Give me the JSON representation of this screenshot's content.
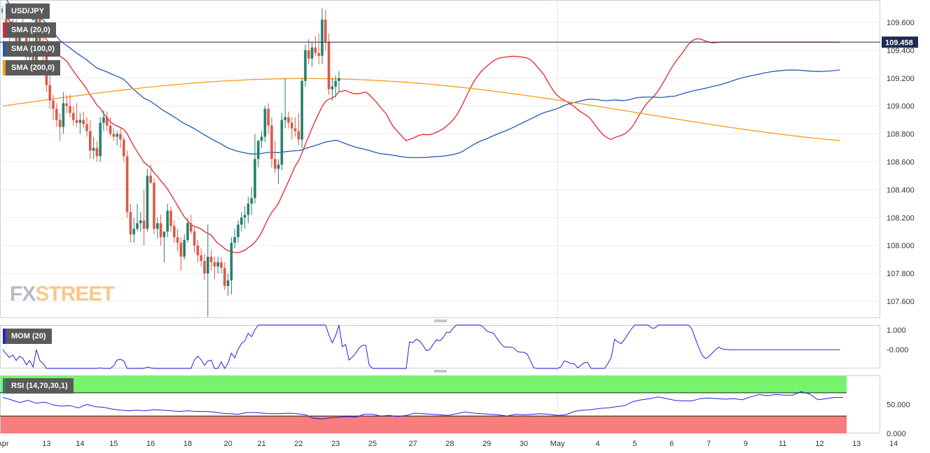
{
  "legend": {
    "symbol": "USD/JPY",
    "sma20": "SMA (20,0)",
    "sma100": "SMA (100,0)",
    "sma200": "SMA (200,0)",
    "mom": "MOM (20)",
    "rsi": "RSI (14,70,30,1)"
  },
  "logo": {
    "part1": "FX",
    "part2": "STREET"
  },
  "colors": {
    "bull": "#26806c",
    "bear": "#dd5a4a",
    "sma20": "#e8242b",
    "sma100": "#2458b8",
    "sma200": "#f59c1a",
    "line": "#2222dd",
    "rsi_over": "#79f36e",
    "rsi_under": "#f97d7d"
  },
  "chart_data": [
    {
      "type": "candlestick",
      "title": "USD/JPY",
      "xlabel": "",
      "ylabel": "",
      "ylim": [
        107.48,
        109.76
      ],
      "y_ticks": [
        "109.600",
        "109.400",
        "109.200",
        "109.000",
        "108.800",
        "108.600",
        "108.400",
        "108.200",
        "108.000",
        "107.800",
        "107.600"
      ],
      "x_ticks": [
        "Apr",
        "13",
        "14",
        "15",
        "16",
        "18",
        "20",
        "21",
        "22",
        "23",
        "25",
        "27",
        "28",
        "29",
        "30",
        "May",
        "4",
        "5",
        "6",
        "7",
        "9",
        "11",
        "12",
        "13",
        "14"
      ],
      "x_tick_index": [
        0,
        13,
        23,
        33,
        44,
        55,
        67,
        77,
        88,
        99,
        110,
        122,
        133,
        144,
        155,
        165,
        177,
        188,
        199,
        210,
        221,
        232,
        243,
        254,
        265
      ],
      "current_price": "109.458",
      "current_price_value": 109.458,
      "candles": [
        [
          109.67,
          109.72,
          109.62,
          109.7
        ],
        [
          109.7,
          109.74,
          109.55,
          109.6
        ],
        [
          109.6,
          109.65,
          109.45,
          109.52
        ],
        [
          109.52,
          109.62,
          109.48,
          109.58
        ],
        [
          109.58,
          109.62,
          109.4,
          109.45
        ],
        [
          109.45,
          109.6,
          109.4,
          109.55
        ],
        [
          109.55,
          109.66,
          109.48,
          109.5
        ],
        [
          109.5,
          109.55,
          109.3,
          109.35
        ],
        [
          109.35,
          109.5,
          109.3,
          109.45
        ],
        [
          109.45,
          109.5,
          109.25,
          109.3
        ],
        [
          109.3,
          109.72,
          109.25,
          109.7
        ],
        [
          109.7,
          109.73,
          109.4,
          109.45
        ],
        [
          109.45,
          109.6,
          109.3,
          109.38
        ],
        [
          109.38,
          109.42,
          109.1,
          109.15
        ],
        [
          109.15,
          109.22,
          108.98,
          109.04
        ],
        [
          109.04,
          109.08,
          108.9,
          108.98
        ],
        [
          108.98,
          109.02,
          108.85,
          108.9
        ],
        [
          108.9,
          108.95,
          108.75,
          108.85
        ],
        [
          108.85,
          109.1,
          108.8,
          109.02
        ],
        [
          109.02,
          109.08,
          108.95,
          109.0
        ],
        [
          109.0,
          109.08,
          108.92,
          108.95
        ],
        [
          108.95,
          109.0,
          108.86,
          108.9
        ],
        [
          108.9,
          109.02,
          108.85,
          108.88
        ],
        [
          108.88,
          108.95,
          108.8,
          108.9
        ],
        [
          108.9,
          108.96,
          108.84,
          108.87
        ],
        [
          108.87,
          108.92,
          108.78,
          108.82
        ],
        [
          108.82,
          108.9,
          108.62,
          108.68
        ],
        [
          108.68,
          108.78,
          108.62,
          108.7
        ],
        [
          108.7,
          108.75,
          108.6,
          108.64
        ],
        [
          108.64,
          108.92,
          108.6,
          108.88
        ],
        [
          108.88,
          108.97,
          108.82,
          108.92
        ],
        [
          108.92,
          108.96,
          108.82,
          108.86
        ],
        [
          108.86,
          108.92,
          108.78,
          108.8
        ],
        [
          108.8,
          108.84,
          108.75,
          108.78
        ],
        [
          108.78,
          108.82,
          108.72,
          108.8
        ],
        [
          108.8,
          108.84,
          108.7,
          108.76
        ],
        [
          108.76,
          108.78,
          108.6,
          108.64
        ],
        [
          108.64,
          108.68,
          108.2,
          108.24
        ],
        [
          108.24,
          108.3,
          108.02,
          108.08
        ],
        [
          108.08,
          108.2,
          108.02,
          108.12
        ],
        [
          108.12,
          108.3,
          108.1,
          108.16
        ],
        [
          108.16,
          108.24,
          108.1,
          108.18
        ],
        [
          108.18,
          108.4,
          108.0,
          108.12
        ],
        [
          108.12,
          108.55,
          108.1,
          108.5
        ],
        [
          108.5,
          108.58,
          108.44,
          108.45
        ],
        [
          108.45,
          108.48,
          108.08,
          108.12
        ],
        [
          108.12,
          108.2,
          108.05,
          108.16
        ],
        [
          108.16,
          108.22,
          108.0,
          108.06
        ],
        [
          108.06,
          108.1,
          107.88,
          108.1
        ],
        [
          108.1,
          108.3,
          108.06,
          108.25
        ],
        [
          108.25,
          108.28,
          108.1,
          108.14
        ],
        [
          108.14,
          108.18,
          108.02,
          108.06
        ],
        [
          108.06,
          108.12,
          107.96,
          108.02
        ],
        [
          108.02,
          108.06,
          107.82,
          107.92
        ],
        [
          107.92,
          108.08,
          107.9,
          108.04
        ],
        [
          108.04,
          108.2,
          108.02,
          108.16
        ],
        [
          108.16,
          108.22,
          108.08,
          108.1
        ],
        [
          108.1,
          108.14,
          107.95,
          108.0
        ],
        [
          108.0,
          108.04,
          107.88,
          107.93
        ],
        [
          107.93,
          107.98,
          107.85,
          107.89
        ],
        [
          107.89,
          107.94,
          107.75,
          107.8
        ],
        [
          107.8,
          108.15,
          107.49,
          107.92
        ],
        [
          107.92,
          107.97,
          107.82,
          107.88
        ],
        [
          107.88,
          107.92,
          107.76,
          107.85
        ],
        [
          107.85,
          107.92,
          107.8,
          107.88
        ],
        [
          107.88,
          107.92,
          107.8,
          107.84
        ],
        [
          107.84,
          107.88,
          107.68,
          107.71
        ],
        [
          107.71,
          107.8,
          107.64,
          107.75
        ],
        [
          107.75,
          108.06,
          107.65,
          108.02
        ],
        [
          108.02,
          108.12,
          107.98,
          108.06
        ],
        [
          108.06,
          108.18,
          108.02,
          108.15
        ],
        [
          108.15,
          108.24,
          108.1,
          108.2
        ],
        [
          108.2,
          108.28,
          108.12,
          108.22
        ],
        [
          108.22,
          108.35,
          108.16,
          108.3
        ],
        [
          108.3,
          108.42,
          108.22,
          108.34
        ],
        [
          108.34,
          108.8,
          108.3,
          108.62
        ],
        [
          108.62,
          108.76,
          108.56,
          108.75
        ],
        [
          108.75,
          108.82,
          108.7,
          108.78
        ],
        [
          108.78,
          109.0,
          108.74,
          108.98
        ],
        [
          108.98,
          109.02,
          108.8,
          108.86
        ],
        [
          108.86,
          108.92,
          108.56,
          108.62
        ],
        [
          108.62,
          108.75,
          108.52,
          108.55
        ],
        [
          108.55,
          108.62,
          108.44,
          108.58
        ],
        [
          108.58,
          108.95,
          108.54,
          108.9
        ],
        [
          108.9,
          109.2,
          108.84,
          108.92
        ],
        [
          108.92,
          108.96,
          108.84,
          108.88
        ],
        [
          108.88,
          108.92,
          108.76,
          108.84
        ],
        [
          108.84,
          108.92,
          108.78,
          108.82
        ],
        [
          108.82,
          108.95,
          108.72,
          108.76
        ],
        [
          108.76,
          109.2,
          108.7,
          109.18
        ],
        [
          109.18,
          109.44,
          109.14,
          109.4
        ],
        [
          109.4,
          109.48,
          109.3,
          109.34
        ],
        [
          109.34,
          109.46,
          109.28,
          109.42
        ],
        [
          109.42,
          109.5,
          109.36,
          109.38
        ],
        [
          109.38,
          109.52,
          109.3,
          109.36
        ],
        [
          109.36,
          109.7,
          109.3,
          109.62
        ],
        [
          109.62,
          109.69,
          109.4,
          109.46
        ],
        [
          109.46,
          109.52,
          109.08,
          109.12
        ],
        [
          109.12,
          109.2,
          109.04,
          109.14
        ],
        [
          109.14,
          109.22,
          109.06,
          109.18
        ],
        [
          109.18,
          109.25,
          109.1,
          109.2
        ]
      ]
    },
    {
      "type": "line",
      "title": "MOM (20)",
      "y_ticks": [
        "1.000",
        "-0.000"
      ],
      "ylim": [
        -0.95,
        1.25
      ]
    },
    {
      "type": "line",
      "title": "RSI (14,70,30,1)",
      "y_ticks": [
        "50.000",
        "0.000"
      ],
      "ylim": [
        0,
        100
      ],
      "overbought": 70,
      "oversold": 30,
      "values": [
        62,
        58,
        53,
        57,
        52,
        54,
        49,
        47,
        48,
        44,
        50,
        46,
        45,
        42,
        40,
        39,
        40,
        39,
        41,
        40,
        39,
        38,
        39,
        38,
        38,
        37,
        35,
        34,
        33,
        36,
        36,
        35,
        34,
        34,
        35,
        34,
        32,
        26,
        25,
        27,
        28,
        29,
        28,
        33,
        33,
        30,
        31,
        29,
        31,
        35,
        34,
        33,
        32,
        31,
        34,
        37,
        35,
        34,
        33,
        32,
        30,
        33,
        32,
        33,
        34,
        33,
        31,
        32,
        38,
        40,
        41,
        43,
        44,
        46,
        48,
        55,
        58,
        60,
        63,
        60,
        57,
        56,
        56,
        60,
        61,
        60,
        59,
        60,
        58,
        63,
        67,
        65,
        67,
        66,
        66,
        72,
        68,
        58,
        60,
        62,
        62
      ]
    }
  ]
}
